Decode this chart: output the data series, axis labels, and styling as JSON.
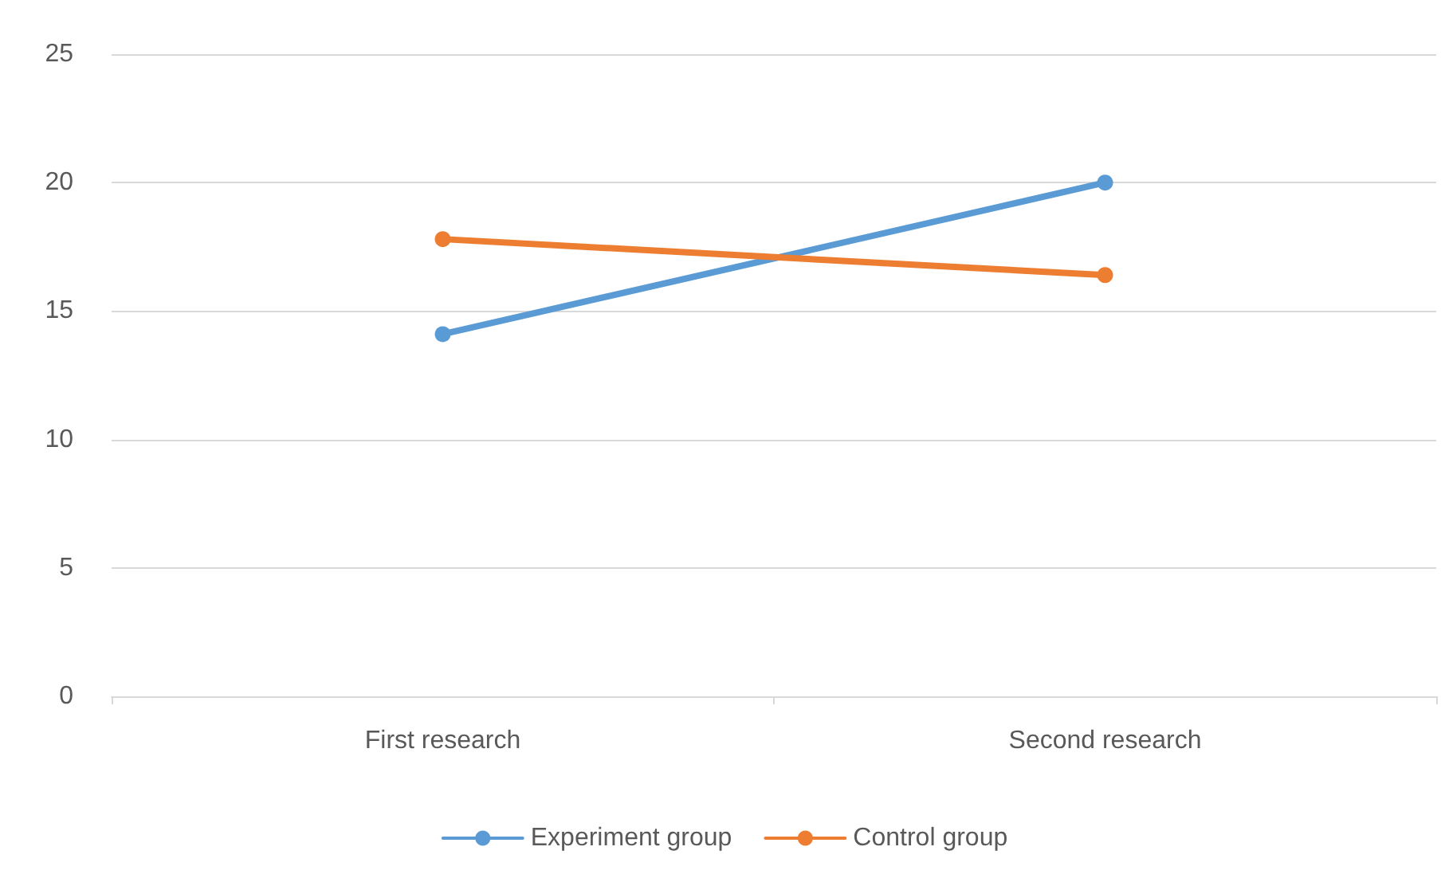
{
  "chart_data": {
    "type": "line",
    "categories": [
      "First research",
      "Second research"
    ],
    "series": [
      {
        "name": "Experiment group",
        "color": "#5b9bd5",
        "values": [
          14.1,
          20.0
        ]
      },
      {
        "name": "Control group",
        "color": "#ed7d31",
        "values": [
          17.8,
          16.4
        ]
      }
    ],
    "ylim": [
      0,
      25
    ],
    "yticks": [
      0,
      5,
      10,
      15,
      20,
      25
    ],
    "grid": "y",
    "legend": "bottom",
    "marker": "circle",
    "line_style": "solid"
  }
}
